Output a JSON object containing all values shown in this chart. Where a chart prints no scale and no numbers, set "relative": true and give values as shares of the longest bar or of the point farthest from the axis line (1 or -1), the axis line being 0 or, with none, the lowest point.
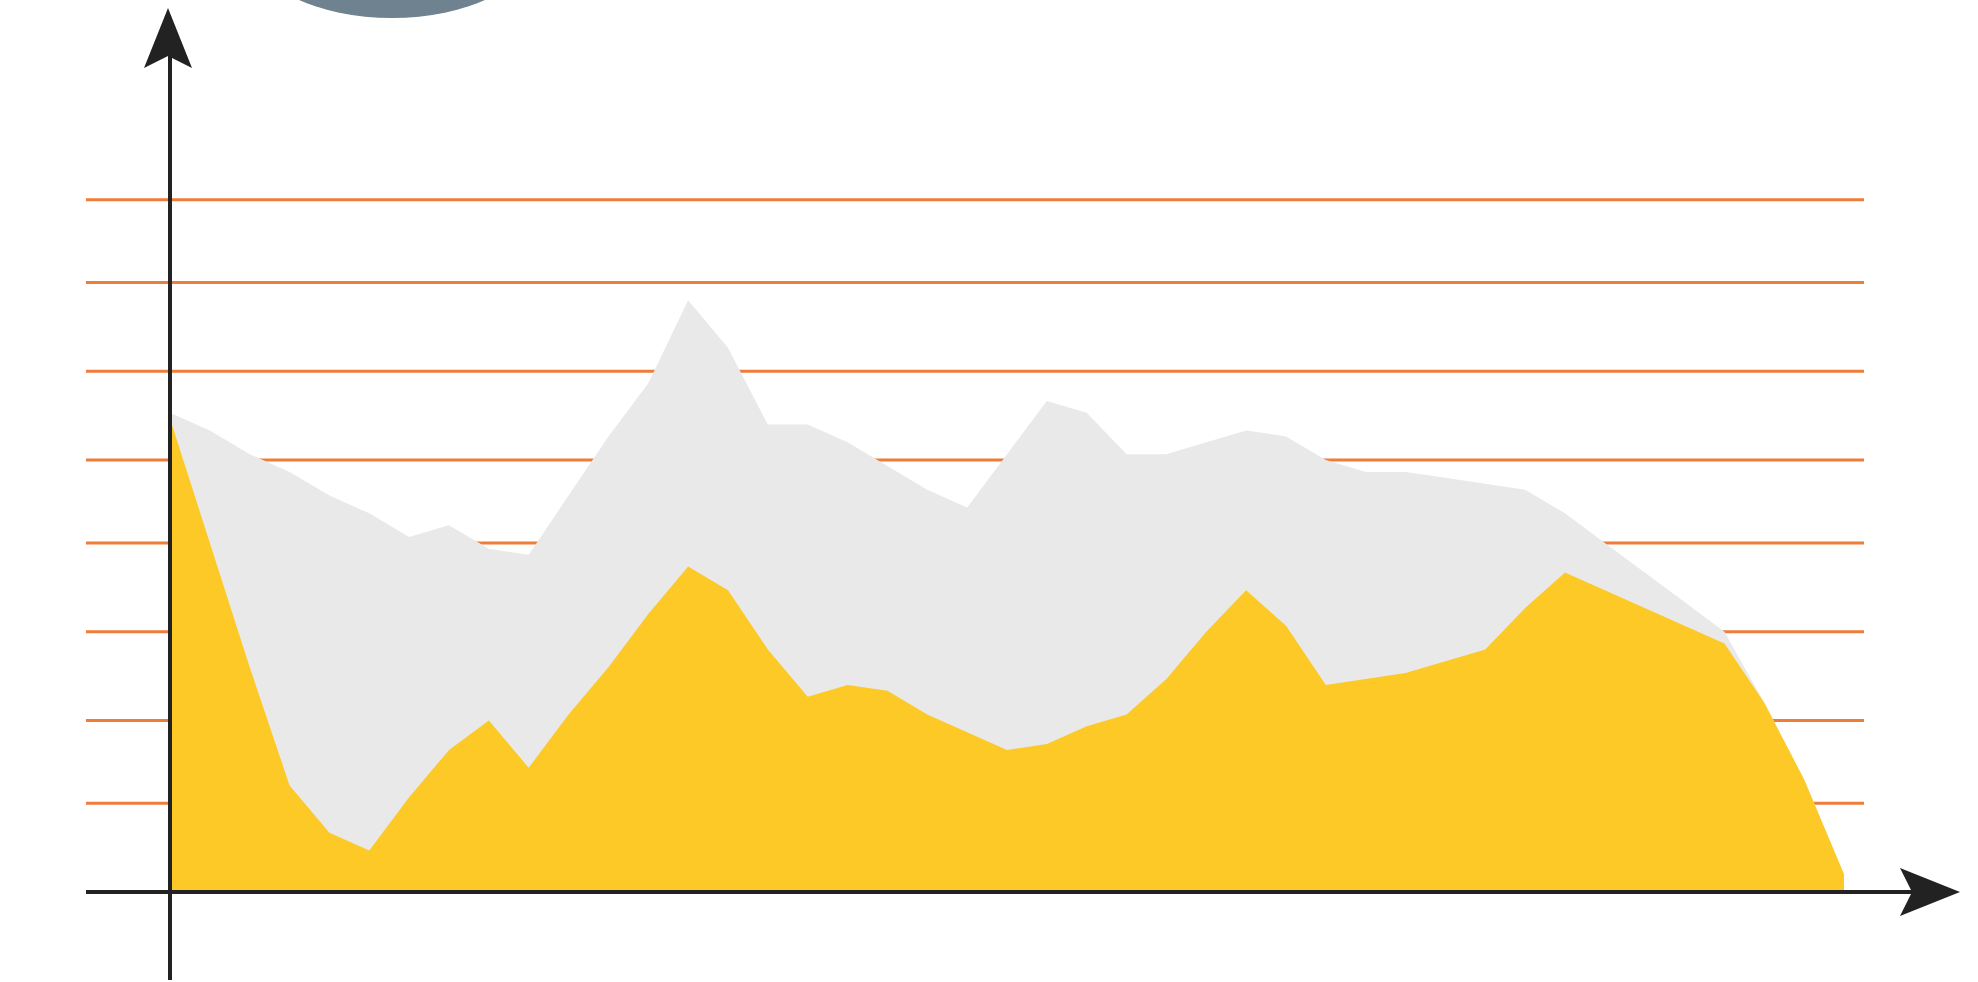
{
  "chart_data": {
    "type": "area",
    "relative": true,
    "legend": false,
    "categories": [
      null,
      null,
      null,
      null,
      null,
      null,
      null,
      null,
      null,
      null,
      null,
      null,
      null,
      null,
      null,
      null,
      null,
      null,
      null,
      null,
      null,
      null,
      null,
      null,
      null,
      null,
      null,
      null,
      null,
      null,
      null,
      null,
      null,
      null,
      null,
      null,
      null,
      null,
      null,
      null,
      null,
      null,
      null
    ],
    "series": [
      {
        "color": "#e9e9e9",
        "values": [
          0.81,
          0.78,
          0.74,
          0.71,
          0.67,
          0.64,
          0.6,
          0.62,
          0.58,
          0.57,
          0.67,
          0.77,
          0.86,
          1,
          0.92,
          0.79,
          0.79,
          0.76,
          0.72,
          0.68,
          0.65,
          0.74,
          0.83,
          0.81,
          0.74,
          0.74,
          0.76,
          0.78,
          0.77,
          0.73,
          0.71,
          0.71,
          0.7,
          0.69,
          0.68,
          0.64,
          0.59,
          0.54,
          0.49,
          0.44,
          0.32,
          0.19,
          0.03
        ]
      },
      {
        "color": "#fcc927",
        "values": [
          0.8,
          0.59,
          0.38,
          0.18,
          0.1,
          0.07,
          0.16,
          0.24,
          0.29,
          0.21,
          0.3,
          0.38,
          0.47,
          0.55,
          0.51,
          0.41,
          0.33,
          0.35,
          0.34,
          0.3,
          0.27,
          0.24,
          0.25,
          0.28,
          0.3,
          0.36,
          0.44,
          0.51,
          0.45,
          0.35,
          0.36,
          0.37,
          0.39,
          0.41,
          0.48,
          0.54,
          0.51,
          0.48,
          0.45,
          0.42,
          0.32,
          0.19,
          0.03
        ]
      }
    ],
    "ref_lines": [
      {
        "axis": "y",
        "value": 0.15,
        "color": "#ee7d3a"
      },
      {
        "axis": "y",
        "value": 0.29,
        "color": "#ee7d3a"
      },
      {
        "axis": "y",
        "value": 0.44,
        "color": "#ee7d3a"
      },
      {
        "axis": "y",
        "value": 0.59,
        "color": "#ee7d3a"
      },
      {
        "axis": "y",
        "value": 0.73,
        "color": "#ee7d3a"
      },
      {
        "axis": "y",
        "value": 0.88,
        "color": "#ee7d3a"
      },
      {
        "axis": "y",
        "value": 1.03,
        "color": "#ee7d3a"
      },
      {
        "axis": "y",
        "value": 1.17,
        "color": "#ee7d3a"
      }
    ]
  }
}
